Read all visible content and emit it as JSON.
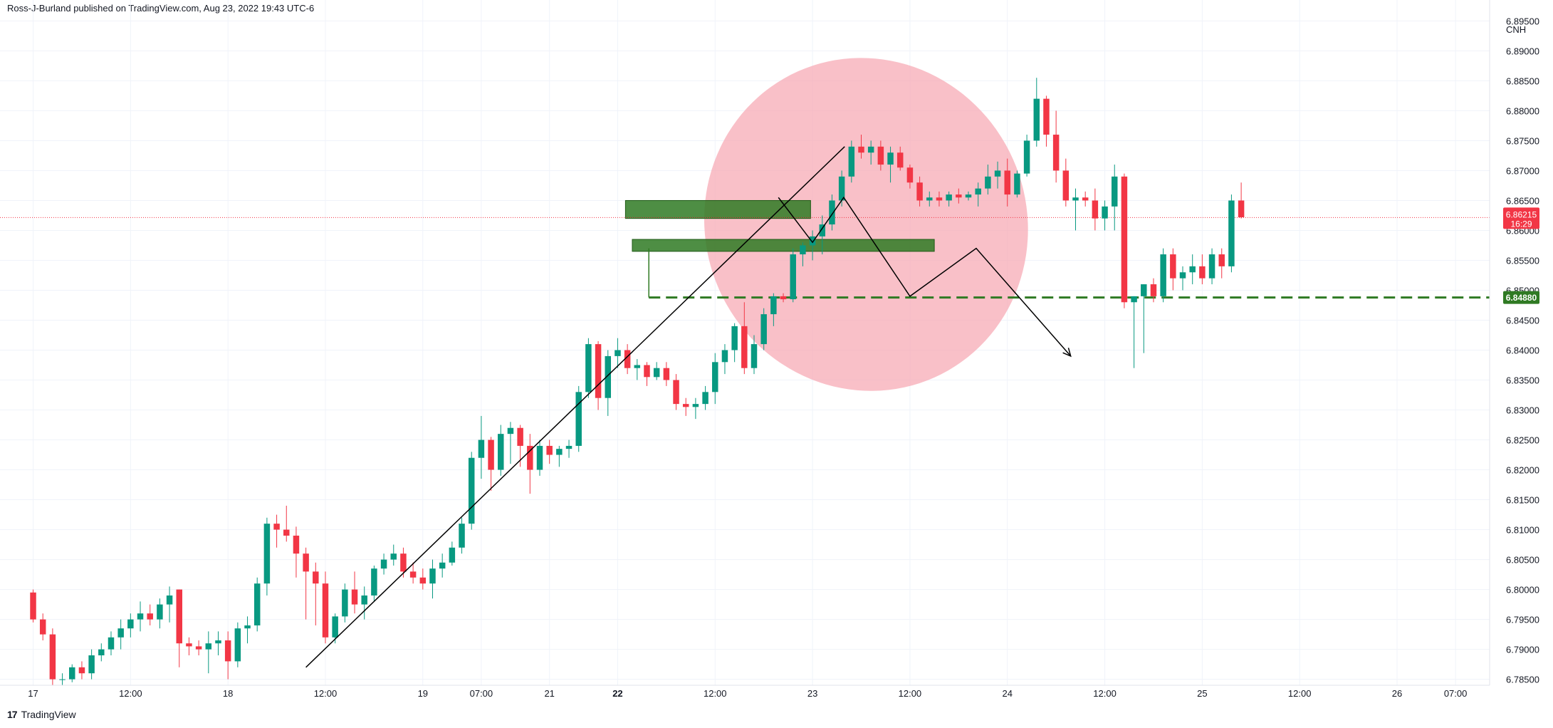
{
  "header": {
    "published_by": "Ross-J-Burland published on TradingView.com, Aug 23, 2022 19:43 UTC-6"
  },
  "footer": {
    "brand": "TradingView",
    "logo_glyph": "17"
  },
  "colors": {
    "up": "#089981",
    "down": "#f23645",
    "zone": "#2f7a23",
    "ellipse": "#f7a5b0",
    "grid": "#f0f3fa",
    "last_price": "#f23645",
    "level": "#2f7a23"
  },
  "chart_data": {
    "type": "candlestick",
    "symbol_currency": "CNH",
    "y_ticks": [
      6.785,
      6.79,
      6.795,
      6.8,
      6.805,
      6.81,
      6.815,
      6.82,
      6.825,
      6.83,
      6.835,
      6.84,
      6.845,
      6.85,
      6.855,
      6.86,
      6.865,
      6.87,
      6.875,
      6.88,
      6.885,
      6.89,
      6.895
    ],
    "y_tick_labels": [
      "6.78500",
      "6.79000",
      "6.79500",
      "6.80000",
      "6.80500",
      "6.81000",
      "6.81500",
      "6.82000",
      "6.82500",
      "6.83000",
      "6.83500",
      "6.84000",
      "6.84500",
      "6.85000",
      "6.85500",
      "6.86000",
      "6.86500",
      "6.87000",
      "6.87500",
      "6.88000",
      "6.88500",
      "6.89000",
      "6.89500"
    ],
    "ylim": [
      6.784,
      6.8985
    ],
    "x_ticks": [
      {
        "t": 0,
        "label": "17",
        "bold": false
      },
      {
        "t": 10,
        "label": "12:00",
        "bold": false
      },
      {
        "t": 20,
        "label": "18",
        "bold": false
      },
      {
        "t": 30,
        "label": "12:00",
        "bold": false
      },
      {
        "t": 40,
        "label": "19",
        "bold": false
      },
      {
        "t": 46,
        "label": "07:00",
        "bold": false
      },
      {
        "t": 53,
        "label": "21",
        "bold": false
      },
      {
        "t": 60,
        "label": "22",
        "bold": true
      },
      {
        "t": 70,
        "label": "12:00",
        "bold": false
      },
      {
        "t": 80,
        "label": "23",
        "bold": false
      },
      {
        "t": 90,
        "label": "12:00",
        "bold": false
      },
      {
        "t": 100,
        "label": "24",
        "bold": false
      },
      {
        "t": 110,
        "label": "12:00",
        "bold": false
      },
      {
        "t": 120,
        "label": "25",
        "bold": false
      },
      {
        "t": 130,
        "label": "12:00",
        "bold": false
      },
      {
        "t": 140,
        "label": "26",
        "bold": false
      },
      {
        "t": 146,
        "label": "07:00",
        "bold": false
      }
    ],
    "xlim": [
      -3.4,
      149.5
    ],
    "candles": [
      [
        6.7995,
        6.8,
        6.7945,
        6.795
      ],
      [
        6.795,
        6.796,
        6.7915,
        6.7925
      ],
      [
        6.7925,
        6.7935,
        6.784,
        6.785
      ],
      [
        6.785,
        6.786,
        6.784,
        6.785
      ],
      [
        6.785,
        6.7875,
        6.7845,
        6.787
      ],
      [
        6.787,
        6.788,
        6.785,
        6.786
      ],
      [
        6.786,
        6.79,
        6.785,
        6.789
      ],
      [
        6.789,
        6.791,
        6.788,
        6.79
      ],
      [
        6.79,
        6.793,
        6.789,
        6.792
      ],
      [
        6.792,
        6.795,
        6.79,
        6.7935
      ],
      [
        6.7935,
        6.796,
        6.792,
        6.795
      ],
      [
        6.795,
        6.798,
        6.793,
        6.796
      ],
      [
        6.796,
        6.7975,
        6.794,
        6.795
      ],
      [
        6.795,
        6.7985,
        6.7935,
        6.7975
      ],
      [
        6.7975,
        6.8005,
        6.7945,
        6.799
      ],
      [
        6.8,
        6.8,
        6.787,
        6.791
      ],
      [
        6.791,
        6.792,
        6.789,
        6.7905
      ],
      [
        6.7905,
        6.7915,
        6.789,
        6.79
      ],
      [
        6.79,
        6.793,
        6.786,
        6.791
      ],
      [
        6.791,
        6.793,
        6.789,
        6.7915
      ],
      [
        6.7915,
        6.793,
        6.785,
        6.788
      ],
      [
        6.788,
        6.7945,
        6.787,
        6.7935
      ],
      [
        6.7935,
        6.7955,
        6.791,
        6.794
      ],
      [
        6.794,
        6.802,
        6.793,
        6.801
      ],
      [
        6.801,
        6.812,
        6.799,
        6.811
      ],
      [
        6.811,
        6.8125,
        6.807,
        6.81
      ],
      [
        6.81,
        6.814,
        6.808,
        6.809
      ],
      [
        6.809,
        6.8105,
        6.802,
        6.806
      ],
      [
        6.806,
        6.807,
        6.795,
        6.803
      ],
      [
        6.803,
        6.8045,
        6.794,
        6.801
      ],
      [
        6.801,
        6.803,
        6.791,
        6.792
      ],
      [
        6.792,
        6.796,
        6.791,
        6.7955
      ],
      [
        6.7955,
        6.801,
        6.7945,
        6.8
      ],
      [
        6.8,
        6.803,
        6.796,
        6.7975
      ],
      [
        6.7975,
        6.8005,
        6.795,
        6.799
      ],
      [
        6.799,
        6.804,
        6.798,
        6.8035
      ],
      [
        6.8035,
        6.806,
        6.8025,
        6.805
      ],
      [
        6.805,
        6.8075,
        6.804,
        6.806
      ],
      [
        6.806,
        6.807,
        6.802,
        6.803
      ],
      [
        6.803,
        6.8045,
        6.801,
        6.802
      ],
      [
        6.802,
        6.8035,
        6.8,
        6.801
      ],
      [
        6.801,
        6.805,
        6.7985,
        6.8035
      ],
      [
        6.8035,
        6.806,
        6.802,
        6.8045
      ],
      [
        6.8045,
        6.808,
        6.804,
        6.807
      ],
      [
        6.807,
        6.812,
        6.806,
        6.811
      ],
      [
        6.811,
        6.823,
        6.81,
        6.822
      ],
      [
        6.822,
        6.829,
        6.8185,
        6.825
      ],
      [
        6.825,
        6.8255,
        6.8165,
        6.82
      ],
      [
        6.82,
        6.8275,
        6.819,
        6.826
      ],
      [
        6.826,
        6.828,
        6.821,
        6.827
      ],
      [
        6.827,
        6.8275,
        6.8205,
        6.824
      ],
      [
        6.824,
        6.826,
        6.816,
        6.82
      ],
      [
        6.82,
        6.825,
        6.819,
        6.824
      ],
      [
        6.824,
        6.825,
        6.821,
        6.8225
      ],
      [
        6.8225,
        6.824,
        6.8205,
        6.8235
      ],
      [
        6.8235,
        6.825,
        6.822,
        6.824
      ],
      [
        6.824,
        6.834,
        6.823,
        6.833
      ],
      [
        6.833,
        6.842,
        6.832,
        6.841
      ],
      [
        6.841,
        6.8415,
        6.83,
        6.832
      ],
      [
        6.832,
        6.84,
        6.829,
        6.839
      ],
      [
        6.839,
        6.842,
        6.837,
        6.84
      ],
      [
        6.84,
        6.841,
        6.836,
        6.837
      ],
      [
        6.837,
        6.8385,
        6.835,
        6.8375
      ],
      [
        6.8375,
        6.838,
        6.834,
        6.8355
      ],
      [
        6.8355,
        6.838,
        6.835,
        6.837
      ],
      [
        6.837,
        6.838,
        6.834,
        6.835
      ],
      [
        6.835,
        6.836,
        6.83,
        6.831
      ],
      [
        6.831,
        6.832,
        6.829,
        6.8305
      ],
      [
        6.8305,
        6.832,
        6.8285,
        6.831
      ],
      [
        6.831,
        6.834,
        6.83,
        6.833
      ],
      [
        6.833,
        6.8395,
        6.831,
        6.838
      ],
      [
        6.838,
        6.841,
        6.836,
        6.84
      ],
      [
        6.84,
        6.8445,
        6.838,
        6.844
      ],
      [
        6.844,
        6.848,
        6.836,
        6.837
      ],
      [
        6.837,
        6.8425,
        6.836,
        6.841
      ],
      [
        6.841,
        6.847,
        6.84,
        6.846
      ],
      [
        6.846,
        6.8495,
        6.844,
        6.849
      ],
      [
        6.849,
        6.8495,
        6.848,
        6.8485
      ],
      [
        6.8485,
        6.857,
        6.848,
        6.856
      ],
      [
        6.856,
        6.858,
        6.854,
        6.8575
      ],
      [
        6.8575,
        6.86,
        6.855,
        6.859
      ],
      [
        6.859,
        6.8625,
        6.856,
        6.861
      ],
      [
        6.861,
        6.866,
        6.86,
        6.865
      ],
      [
        6.865,
        6.87,
        6.864,
        6.869
      ],
      [
        6.869,
        6.875,
        6.868,
        6.874
      ],
      [
        6.874,
        6.876,
        6.872,
        6.873
      ],
      [
        6.873,
        6.875,
        6.871,
        6.874
      ],
      [
        6.874,
        6.875,
        6.87,
        6.871
      ],
      [
        6.871,
        6.874,
        6.868,
        6.873
      ],
      [
        6.873,
        6.874,
        6.87,
        6.8705
      ],
      [
        6.8705,
        6.871,
        6.867,
        6.868
      ],
      [
        6.868,
        6.869,
        6.864,
        6.865
      ],
      [
        6.865,
        6.8665,
        6.864,
        6.8655
      ],
      [
        6.8655,
        6.8665,
        6.864,
        6.865
      ],
      [
        6.865,
        6.8665,
        6.864,
        6.866
      ],
      [
        6.866,
        6.867,
        6.8645,
        6.8655
      ],
      [
        6.8655,
        6.8665,
        6.865,
        6.866
      ],
      [
        6.866,
        6.868,
        6.864,
        6.867
      ],
      [
        6.867,
        6.871,
        6.866,
        6.869
      ],
      [
        6.869,
        6.8715,
        6.867,
        6.87
      ],
      [
        6.87,
        6.872,
        6.864,
        6.866
      ],
      [
        6.866,
        6.87,
        6.8655,
        6.8695
      ],
      [
        6.8695,
        6.876,
        6.869,
        6.875
      ],
      [
        6.875,
        6.8855,
        6.874,
        6.882
      ],
      [
        6.882,
        6.8825,
        6.874,
        6.876
      ],
      [
        6.876,
        6.88,
        6.868,
        6.87
      ],
      [
        6.87,
        6.872,
        6.864,
        6.865
      ],
      [
        6.865,
        6.867,
        6.86,
        6.8655
      ],
      [
        6.8655,
        6.8665,
        6.864,
        6.865
      ],
      [
        6.865,
        6.867,
        6.86,
        6.862
      ],
      [
        6.862,
        6.865,
        6.86,
        6.864
      ],
      [
        6.864,
        6.871,
        6.86,
        6.869
      ],
      [
        6.869,
        6.8695,
        6.847,
        6.848
      ],
      [
        6.848,
        6.849,
        6.837,
        6.849
      ],
      [
        6.849,
        6.851,
        6.8395,
        6.851
      ],
      [
        6.851,
        6.852,
        6.848,
        6.849
      ],
      [
        6.849,
        6.857,
        6.848,
        6.856
      ],
      [
        6.856,
        6.857,
        6.85,
        6.852
      ],
      [
        6.852,
        6.854,
        6.85,
        6.853
      ],
      [
        6.853,
        6.856,
        6.851,
        6.854
      ],
      [
        6.854,
        6.856,
        6.851,
        6.852
      ],
      [
        6.852,
        6.857,
        6.851,
        6.856
      ],
      [
        6.856,
        6.857,
        6.852,
        6.854
      ],
      [
        6.854,
        6.866,
        6.853,
        6.865
      ],
      [
        6.865,
        6.868,
        6.862,
        6.8622
      ]
    ],
    "current_price": {
      "value": 6.86215,
      "label": "6.86215",
      "countdown": "16:29"
    },
    "level_line": {
      "value": 6.8488,
      "label": "6.84880"
    },
    "zones": [
      {
        "from_t": 60.8,
        "to_t": 79.8,
        "low": 6.862,
        "high": 6.865
      },
      {
        "from_t": 61.5,
        "to_t": 92.5,
        "low": 6.8565,
        "high": 6.8585
      }
    ],
    "trendline": [
      {
        "t": 28,
        "price": 6.787
      },
      {
        "t": 83.3,
        "price": 6.874
      }
    ],
    "pattern_path": [
      {
        "t": 76.5,
        "price": 6.8655
      },
      {
        "t": 80,
        "price": 6.858
      },
      {
        "t": 83.2,
        "price": 6.8655
      },
      {
        "t": 90,
        "price": 6.849
      },
      {
        "t": 96.8,
        "price": 6.857
      },
      {
        "t": 106.5,
        "price": 6.839
      }
    ],
    "level_connector": {
      "t": 63.2,
      "top": 6.857,
      "bottom": 6.8488
    },
    "ellipse": {
      "center_t": 85.5,
      "center_price": 6.861,
      "rx_t": 16.5,
      "ry_price": 0.028,
      "rotation_deg": -24
    }
  }
}
